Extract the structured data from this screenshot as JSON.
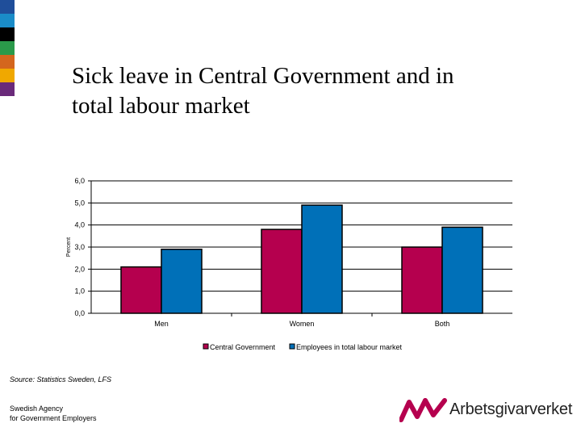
{
  "slide": {
    "title_line1": "Sick leave in Central Government and in",
    "title_line2": "total labour market",
    "source": "Source: Statistics Sweden, LFS",
    "org_line1": "Swedish Agency",
    "org_line2": "for Government Employers",
    "logo_text": "Arbetsgivarverket",
    "logo_icon": "arbetsgivarverket-logo-icon",
    "stripe_colors": [
      "#1f4e9a",
      "#1a8cc8",
      "#000000",
      "#2a9a4a",
      "#d4661e",
      "#f0a800",
      "#6a2a7a"
    ]
  },
  "chart_data": {
    "type": "bar",
    "categories": [
      "Men",
      "Women",
      "Both"
    ],
    "series": [
      {
        "name": "Central Government",
        "values": [
          2.1,
          3.8,
          3.0
        ],
        "color": "#b5004e"
      },
      {
        "name": "Employees in total labour market",
        "values": [
          2.9,
          4.9,
          3.9
        ],
        "color": "#0070b8"
      }
    ],
    "ylabel": "Percent",
    "ylim": [
      0,
      6
    ],
    "yticks": [
      "0,0",
      "1,0",
      "2,0",
      "3,0",
      "4,0",
      "5,0",
      "6,0"
    ],
    "grid": true,
    "legend": "bottom"
  }
}
